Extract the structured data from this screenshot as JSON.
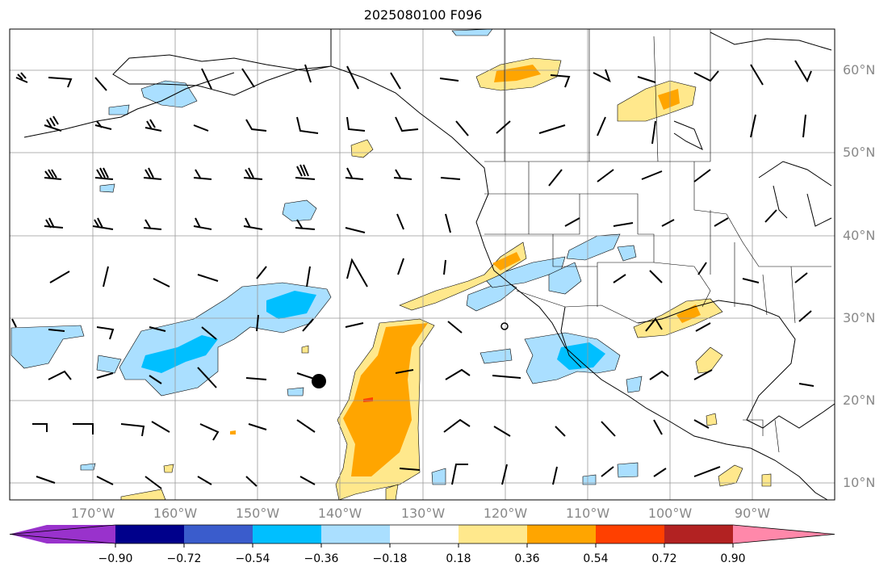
{
  "title": "2025080100 F096",
  "map": {
    "lat_labels": [
      "60°N",
      "50°N",
      "40°N",
      "30°N",
      "20°N",
      "10°N"
    ],
    "lon_labels": [
      "170°W",
      "160°W",
      "150°W",
      "140°W",
      "130°W",
      "120°W",
      "110°W",
      "100°W",
      "90°W"
    ],
    "extent": {
      "lon_min": -180,
      "lon_max": -80,
      "lat_min": 8,
      "lat_max": 65
    },
    "field": "shaded anomaly with wind barbs",
    "storm_marker": {
      "lon": -142.8,
      "lat": 22.3
    }
  },
  "colorbar": {
    "tick_labels": [
      "−0.90",
      "−0.72",
      "−0.54",
      "−0.36",
      "−0.18",
      "0.18",
      "0.36",
      "0.54",
      "0.72",
      "0.90"
    ],
    "colors": [
      "#9932cc",
      "#00008b",
      "#3a5ccc",
      "#00bfff",
      "#aadfff",
      "#ffffff",
      "#ffe88c",
      "#ffa500",
      "#ff4000",
      "#b22222",
      "#ff88aa"
    ],
    "extend": "both"
  }
}
